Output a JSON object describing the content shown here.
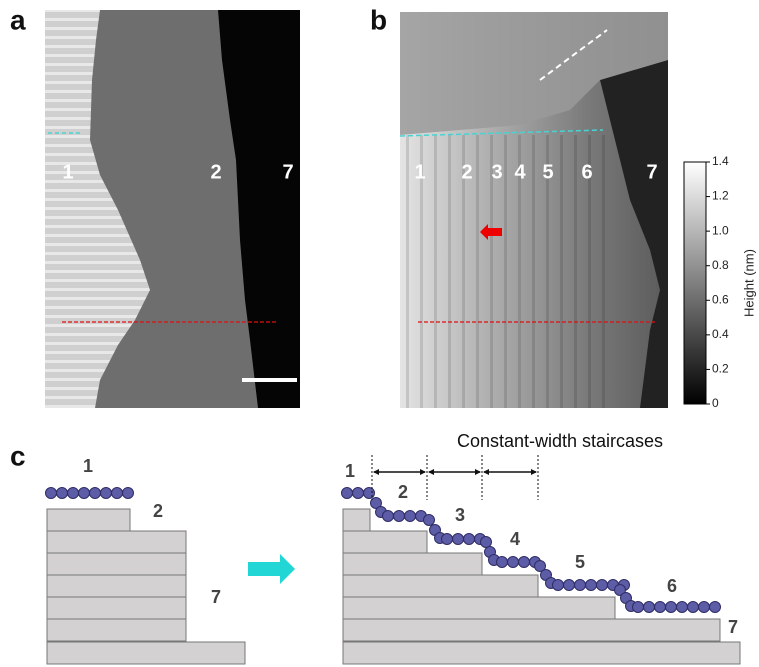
{
  "panels": {
    "a": {
      "label": "a",
      "layer_labels": [
        "1",
        "2",
        "7"
      ]
    },
    "b": {
      "label": "b",
      "layer_labels": [
        "1",
        "2",
        "3",
        "4",
        "5",
        "6",
        "7"
      ]
    },
    "c": {
      "label": "c",
      "annotation": "Constant-width staircases",
      "before_labels": [
        "1",
        "2",
        "7"
      ],
      "after_labels": [
        "1",
        "2",
        "3",
        "4",
        "5",
        "6",
        "7"
      ]
    }
  },
  "colorbar": {
    "label": "Height (nm)",
    "lim": [
      0,
      1.4
    ],
    "ticks": [
      0,
      0.2,
      0.4,
      0.6,
      0.8,
      {
        "value": 1,
        "label": "1.0"
      },
      1.2,
      1.4
    ]
  }
}
